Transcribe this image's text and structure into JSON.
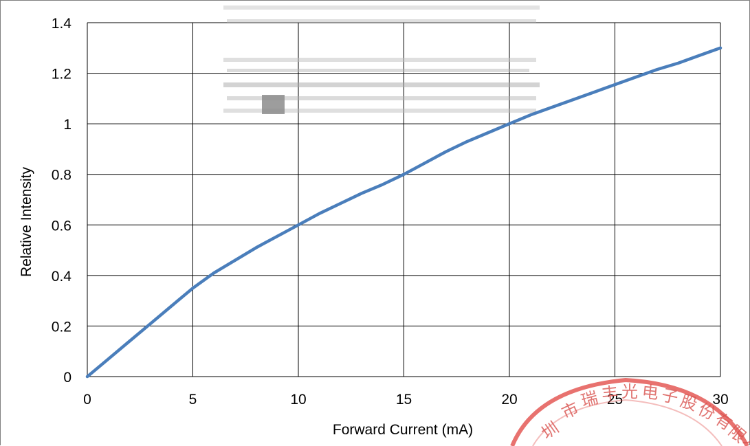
{
  "chart_data": {
    "type": "line",
    "title": "",
    "xlabel": "Forward Current (mA)",
    "ylabel": "Relative Intensity",
    "xlim": [
      0,
      30
    ],
    "ylim": [
      0,
      1.4
    ],
    "xticks": [
      "0",
      "5",
      "10",
      "15",
      "20",
      "25",
      "30"
    ],
    "yticks": [
      "0",
      "0.2",
      "0.4",
      "0.6",
      "0.8",
      "1",
      "1.2",
      "1.4"
    ],
    "grid": true,
    "legend": "none",
    "series": [
      {
        "color": "#4a7ebb",
        "x": [
          0,
          1,
          2,
          3,
          4,
          5,
          6,
          7,
          8,
          9,
          10,
          11,
          12,
          13,
          14,
          15,
          16,
          17,
          18,
          19,
          20,
          21,
          22,
          23,
          24,
          25,
          26,
          27,
          28,
          29,
          30
        ],
        "y": [
          0,
          0.07,
          0.14,
          0.21,
          0.28,
          0.35,
          0.41,
          0.46,
          0.51,
          0.555,
          0.6,
          0.645,
          0.685,
          0.725,
          0.76,
          0.8,
          0.845,
          0.89,
          0.93,
          0.965,
          1.0,
          1.035,
          1.065,
          1.095,
          1.125,
          1.155,
          1.185,
          1.215,
          1.24,
          1.27,
          1.3
        ]
      }
    ]
  },
  "watermark": {
    "stamp_text": "圳市瑞丰光电子股份有限公",
    "stamp_color": "#e0433f"
  }
}
